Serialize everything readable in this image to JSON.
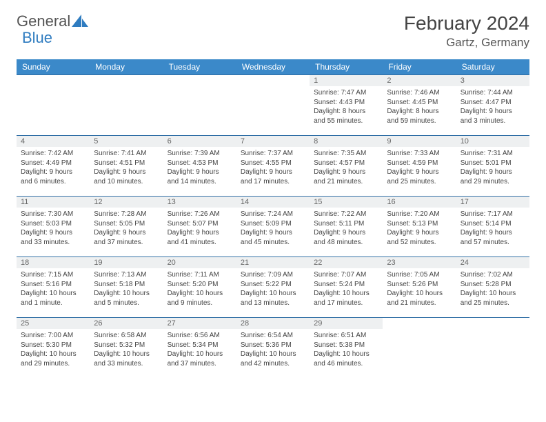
{
  "logo": {
    "word1": "General",
    "word2": "Blue"
  },
  "header": {
    "month": "February 2024",
    "location": "Gartz, Germany"
  },
  "colors": {
    "header_bg": "#3b89c9",
    "header_text": "#ffffff",
    "rule": "#2f6ea5",
    "daynum_bg": "#eef0f1",
    "body_text": "#444444",
    "logo_blue": "#2f7cc0"
  },
  "weekdays": [
    "Sunday",
    "Monday",
    "Tuesday",
    "Wednesday",
    "Thursday",
    "Friday",
    "Saturday"
  ],
  "weeks": [
    [
      null,
      null,
      null,
      null,
      {
        "n": "1",
        "sr": "Sunrise: 7:47 AM",
        "ss": "Sunset: 4:43 PM",
        "dl": "Daylight: 8 hours and 55 minutes."
      },
      {
        "n": "2",
        "sr": "Sunrise: 7:46 AM",
        "ss": "Sunset: 4:45 PM",
        "dl": "Daylight: 8 hours and 59 minutes."
      },
      {
        "n": "3",
        "sr": "Sunrise: 7:44 AM",
        "ss": "Sunset: 4:47 PM",
        "dl": "Daylight: 9 hours and 3 minutes."
      }
    ],
    [
      {
        "n": "4",
        "sr": "Sunrise: 7:42 AM",
        "ss": "Sunset: 4:49 PM",
        "dl": "Daylight: 9 hours and 6 minutes."
      },
      {
        "n": "5",
        "sr": "Sunrise: 7:41 AM",
        "ss": "Sunset: 4:51 PM",
        "dl": "Daylight: 9 hours and 10 minutes."
      },
      {
        "n": "6",
        "sr": "Sunrise: 7:39 AM",
        "ss": "Sunset: 4:53 PM",
        "dl": "Daylight: 9 hours and 14 minutes."
      },
      {
        "n": "7",
        "sr": "Sunrise: 7:37 AM",
        "ss": "Sunset: 4:55 PM",
        "dl": "Daylight: 9 hours and 17 minutes."
      },
      {
        "n": "8",
        "sr": "Sunrise: 7:35 AM",
        "ss": "Sunset: 4:57 PM",
        "dl": "Daylight: 9 hours and 21 minutes."
      },
      {
        "n": "9",
        "sr": "Sunrise: 7:33 AM",
        "ss": "Sunset: 4:59 PM",
        "dl": "Daylight: 9 hours and 25 minutes."
      },
      {
        "n": "10",
        "sr": "Sunrise: 7:31 AM",
        "ss": "Sunset: 5:01 PM",
        "dl": "Daylight: 9 hours and 29 minutes."
      }
    ],
    [
      {
        "n": "11",
        "sr": "Sunrise: 7:30 AM",
        "ss": "Sunset: 5:03 PM",
        "dl": "Daylight: 9 hours and 33 minutes."
      },
      {
        "n": "12",
        "sr": "Sunrise: 7:28 AM",
        "ss": "Sunset: 5:05 PM",
        "dl": "Daylight: 9 hours and 37 minutes."
      },
      {
        "n": "13",
        "sr": "Sunrise: 7:26 AM",
        "ss": "Sunset: 5:07 PM",
        "dl": "Daylight: 9 hours and 41 minutes."
      },
      {
        "n": "14",
        "sr": "Sunrise: 7:24 AM",
        "ss": "Sunset: 5:09 PM",
        "dl": "Daylight: 9 hours and 45 minutes."
      },
      {
        "n": "15",
        "sr": "Sunrise: 7:22 AM",
        "ss": "Sunset: 5:11 PM",
        "dl": "Daylight: 9 hours and 48 minutes."
      },
      {
        "n": "16",
        "sr": "Sunrise: 7:20 AM",
        "ss": "Sunset: 5:13 PM",
        "dl": "Daylight: 9 hours and 52 minutes."
      },
      {
        "n": "17",
        "sr": "Sunrise: 7:17 AM",
        "ss": "Sunset: 5:14 PM",
        "dl": "Daylight: 9 hours and 57 minutes."
      }
    ],
    [
      {
        "n": "18",
        "sr": "Sunrise: 7:15 AM",
        "ss": "Sunset: 5:16 PM",
        "dl": "Daylight: 10 hours and 1 minute."
      },
      {
        "n": "19",
        "sr": "Sunrise: 7:13 AM",
        "ss": "Sunset: 5:18 PM",
        "dl": "Daylight: 10 hours and 5 minutes."
      },
      {
        "n": "20",
        "sr": "Sunrise: 7:11 AM",
        "ss": "Sunset: 5:20 PM",
        "dl": "Daylight: 10 hours and 9 minutes."
      },
      {
        "n": "21",
        "sr": "Sunrise: 7:09 AM",
        "ss": "Sunset: 5:22 PM",
        "dl": "Daylight: 10 hours and 13 minutes."
      },
      {
        "n": "22",
        "sr": "Sunrise: 7:07 AM",
        "ss": "Sunset: 5:24 PM",
        "dl": "Daylight: 10 hours and 17 minutes."
      },
      {
        "n": "23",
        "sr": "Sunrise: 7:05 AM",
        "ss": "Sunset: 5:26 PM",
        "dl": "Daylight: 10 hours and 21 minutes."
      },
      {
        "n": "24",
        "sr": "Sunrise: 7:02 AM",
        "ss": "Sunset: 5:28 PM",
        "dl": "Daylight: 10 hours and 25 minutes."
      }
    ],
    [
      {
        "n": "25",
        "sr": "Sunrise: 7:00 AM",
        "ss": "Sunset: 5:30 PM",
        "dl": "Daylight: 10 hours and 29 minutes."
      },
      {
        "n": "26",
        "sr": "Sunrise: 6:58 AM",
        "ss": "Sunset: 5:32 PM",
        "dl": "Daylight: 10 hours and 33 minutes."
      },
      {
        "n": "27",
        "sr": "Sunrise: 6:56 AM",
        "ss": "Sunset: 5:34 PM",
        "dl": "Daylight: 10 hours and 37 minutes."
      },
      {
        "n": "28",
        "sr": "Sunrise: 6:54 AM",
        "ss": "Sunset: 5:36 PM",
        "dl": "Daylight: 10 hours and 42 minutes."
      },
      {
        "n": "29",
        "sr": "Sunrise: 6:51 AM",
        "ss": "Sunset: 5:38 PM",
        "dl": "Daylight: 10 hours and 46 minutes."
      },
      null,
      null
    ]
  ]
}
